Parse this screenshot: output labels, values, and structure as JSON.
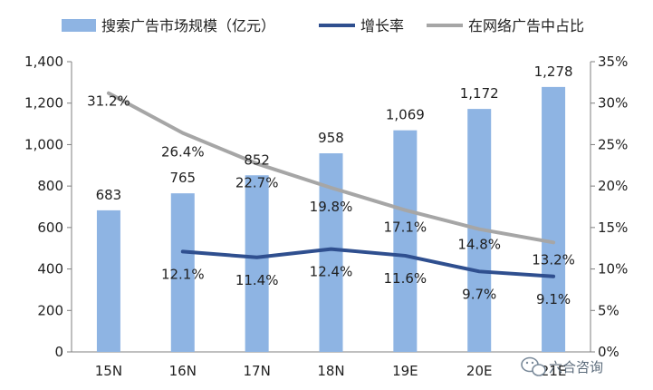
{
  "chart_data": {
    "type": "bar",
    "categories": [
      "15N",
      "16N",
      "17N",
      "18N",
      "19E",
      "20E",
      "21E"
    ],
    "series": [
      {
        "name": "搜索广告市场规模（亿元）",
        "kind": "bar",
        "axis": "left",
        "color": "#8eb4e3",
        "values": [
          683,
          765,
          852,
          958,
          1069,
          1172,
          1278
        ],
        "labels": [
          "683",
          "765",
          "852",
          "958",
          "1,069",
          "1,172",
          "1,278"
        ]
      },
      {
        "name": "增长率",
        "kind": "line",
        "axis": "right",
        "color": "#2f4f8f",
        "values": [
          null,
          12.1,
          11.4,
          12.4,
          11.6,
          9.7,
          9.1
        ],
        "labels": [
          "",
          "12.1%",
          "11.4%",
          "12.4%",
          "11.6%",
          "9.7%",
          "9.1%"
        ]
      },
      {
        "name": "在网络广告中占比",
        "kind": "line",
        "axis": "right",
        "color": "#a6a6a6",
        "values": [
          31.2,
          26.4,
          22.7,
          19.8,
          17.1,
          14.8,
          13.2
        ],
        "labels": [
          "31.2%",
          "26.4%",
          "22.7%",
          "19.8%",
          "17.1%",
          "14.8%",
          "13.2%"
        ]
      }
    ],
    "y_left": {
      "ylim": [
        0,
        1400
      ],
      "ticks": [
        0,
        200,
        400,
        600,
        800,
        1000,
        1200,
        1400
      ],
      "tick_labels": [
        "0",
        "200",
        "400",
        "600",
        "800",
        "1,000",
        "1,200",
        "1,400"
      ]
    },
    "y_right": {
      "ylim": [
        0,
        35
      ],
      "ticks": [
        0,
        5,
        10,
        15,
        20,
        25,
        30,
        35
      ],
      "tick_labels": [
        "0%",
        "5%",
        "10%",
        "15%",
        "20%",
        "25%",
        "30%",
        "35%"
      ]
    },
    "legend": {
      "position": "top"
    },
    "grid": false
  },
  "watermark": {
    "text": "六合咨询"
  }
}
